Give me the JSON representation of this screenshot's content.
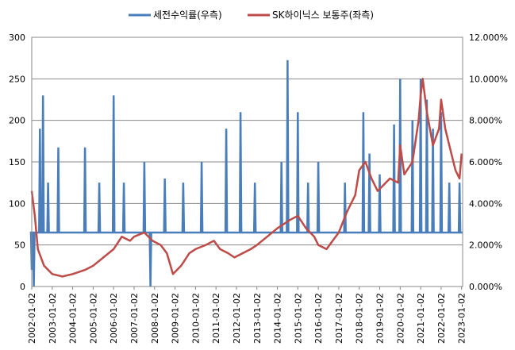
{
  "chart_data": {
    "type": "line",
    "legend": [
      {
        "name": "세전수익률(우측)",
        "color": "#4a7ebb",
        "axis": "right"
      },
      {
        "name": "SK하이닉스 보통주(좌측)",
        "color": "#be4b48",
        "axis": "left"
      }
    ],
    "legend_position": "top",
    "left_axis": {
      "min": 0,
      "max": 300,
      "ticks": [
        "0",
        "50",
        "100",
        "150",
        "200",
        "250",
        "300"
      ]
    },
    "right_axis": {
      "min": 0,
      "max": 12,
      "ticks": [
        "0.000%",
        "2.000%",
        "4.000%",
        "6.000%",
        "8.000%",
        "10.000%",
        "12.000%"
      ]
    },
    "x_axis": {
      "ticks": [
        "2002-01-02",
        "2003-01-02",
        "2004-01-02",
        "2005-01-02",
        "2006-01-02",
        "2007-01-02",
        "2008-01-02",
        "2009-01-02",
        "2010-01-02",
        "2011-01-02",
        "2012-01-02",
        "2013-01-02",
        "2014-01-02",
        "2015-01-02",
        "2016-01-02",
        "2017-01-02",
        "2018-01-02",
        "2019-01-02",
        "2020-01-02",
        "2021-01-02",
        "2022-01-02",
        "2023-01-02"
      ]
    },
    "grid": "horizontal",
    "series": [
      {
        "name": "SK하이닉스 보통주(좌측)",
        "axis": "left",
        "x": [
          2002.0,
          2002.15,
          2002.3,
          2002.6,
          2003.0,
          2003.5,
          2004.0,
          2004.6,
          2005.0,
          2005.5,
          2006.0,
          2006.4,
          2006.8,
          2007.0,
          2007.5,
          2007.9,
          2008.3,
          2008.6,
          2008.9,
          2009.3,
          2009.7,
          2010.0,
          2010.5,
          2010.9,
          2011.2,
          2011.6,
          2011.9,
          2012.3,
          2012.7,
          2013.0,
          2013.5,
          2014.0,
          2014.3,
          2014.6,
          2015.0,
          2015.4,
          2015.8,
          2016.0,
          2016.4,
          2016.7,
          2017.0,
          2017.4,
          2017.8,
          2018.0,
          2018.3,
          2018.6,
          2018.9,
          2019.1,
          2019.5,
          2019.9,
          2020.0,
          2020.2,
          2020.6,
          2020.9,
          2021.0,
          2021.1,
          2021.3,
          2021.6,
          2021.9,
          2022.0,
          2022.2,
          2022.4,
          2022.7,
          2022.9,
          2023.0
        ],
        "values": [
          115,
          85,
          45,
          25,
          15,
          12,
          15,
          20,
          25,
          35,
          45,
          60,
          55,
          60,
          65,
          55,
          50,
          40,
          15,
          25,
          40,
          45,
          50,
          55,
          45,
          40,
          35,
          40,
          45,
          50,
          60,
          70,
          75,
          80,
          85,
          70,
          60,
          50,
          45,
          55,
          65,
          90,
          110,
          140,
          150,
          130,
          115,
          120,
          130,
          125,
          170,
          135,
          150,
          200,
          230,
          250,
          210,
          170,
          190,
          225,
          190,
          170,
          140,
          130,
          160
        ]
      },
      {
        "name": "세전수익률(우측)",
        "axis": "right",
        "baseline": 2.6,
        "spikes": [
          [
            2002.0,
            0.8
          ],
          [
            2002.1,
            0.0
          ],
          [
            2002.4,
            7.6
          ],
          [
            2002.55,
            9.2
          ],
          [
            2002.8,
            5.0
          ],
          [
            2003.3,
            6.7
          ],
          [
            2004.6,
            6.7
          ],
          [
            2005.3,
            5.0
          ],
          [
            2006.0,
            9.2
          ],
          [
            2006.5,
            5.0
          ],
          [
            2007.5,
            6.0
          ],
          [
            2007.8,
            0.0
          ],
          [
            2008.5,
            5.2
          ],
          [
            2009.4,
            5.0
          ],
          [
            2010.3,
            6.0
          ],
          [
            2011.5,
            7.6
          ],
          [
            2012.2,
            8.4
          ],
          [
            2012.9,
            5.0
          ],
          [
            2014.2,
            6.0
          ],
          [
            2014.5,
            10.9
          ],
          [
            2015.0,
            8.4
          ],
          [
            2015.5,
            5.0
          ],
          [
            2016.0,
            6.0
          ],
          [
            2017.3,
            5.0
          ],
          [
            2018.2,
            8.4
          ],
          [
            2018.5,
            6.4
          ],
          [
            2019.0,
            5.4
          ],
          [
            2019.7,
            7.8
          ],
          [
            2020.0,
            10.0
          ],
          [
            2020.6,
            8.0
          ],
          [
            2021.0,
            10.0
          ],
          [
            2021.3,
            9.0
          ],
          [
            2021.6,
            7.6
          ],
          [
            2022.0,
            8.4
          ],
          [
            2022.4,
            5.0
          ],
          [
            2022.9,
            5.0
          ]
        ]
      }
    ]
  }
}
